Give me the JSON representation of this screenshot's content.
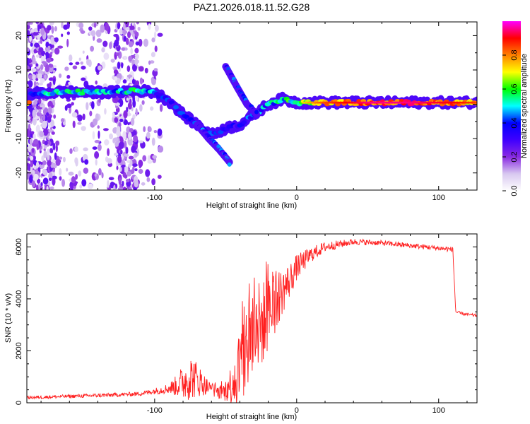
{
  "title": "PAZ1.2026.018.11.52.G28",
  "chart_data": [
    {
      "type": "heatmap",
      "xlabel": "Height of straight line (km)",
      "ylabel": "Frequency (Hz)",
      "xlim": [
        -190,
        127
      ],
      "ylim": [
        -25,
        24
      ],
      "xticks": [
        -100,
        0,
        100
      ],
      "yticks": [
        -20,
        -10,
        0,
        10,
        20
      ],
      "colorbar": {
        "label": "Normalized spectral amplitude",
        "ticks": [
          0.0,
          0.2,
          0.4,
          0.6,
          0.8
        ],
        "range": [
          0,
          1
        ],
        "stops": [
          "#ffffff",
          "#d8c8f0",
          "#8a2be2",
          "#3f00ff",
          "#0000ff",
          "#00ffff",
          "#00ff00",
          "#ffff00",
          "#ff8000",
          "#ff0000",
          "#ff00ff"
        ]
      },
      "ridge": [
        {
          "x": -188,
          "y": 3,
          "v": 0.45
        },
        {
          "x": -170,
          "y": 3.5,
          "v": 0.5
        },
        {
          "x": -150,
          "y": 3.5,
          "v": 0.5
        },
        {
          "x": -130,
          "y": 3.5,
          "v": 0.45
        },
        {
          "x": -112,
          "y": 4,
          "v": 0.55
        },
        {
          "x": -100,
          "y": 3.5,
          "v": 0.4
        },
        {
          "x": -90,
          "y": 1,
          "v": 0.35
        },
        {
          "x": -80,
          "y": -3,
          "v": 0.35
        },
        {
          "x": -70,
          "y": -6,
          "v": 0.35
        },
        {
          "x": -60,
          "y": -9,
          "v": 0.35
        },
        {
          "x": -50,
          "y": -7,
          "v": 0.35
        },
        {
          "x": -40,
          "y": -6,
          "v": 0.35
        },
        {
          "x": -30,
          "y": -3,
          "v": 0.4
        },
        {
          "x": -20,
          "y": 0,
          "v": 0.45
        },
        {
          "x": -10,
          "y": 1.5,
          "v": 0.5
        },
        {
          "x": 0,
          "y": 0.5,
          "v": 0.6
        },
        {
          "x": 20,
          "y": 0.5,
          "v": 0.75
        },
        {
          "x": 50,
          "y": 0.5,
          "v": 0.85
        },
        {
          "x": 80,
          "y": 0.5,
          "v": 0.85
        },
        {
          "x": 110,
          "y": 0.5,
          "v": 0.8
        },
        {
          "x": 127,
          "y": 0.5,
          "v": 0.75
        }
      ],
      "branches": [
        {
          "name": "lower branch",
          "points": [
            {
              "x": -70,
              "y": -6
            },
            {
              "x": -62,
              "y": -10
            },
            {
              "x": -55,
              "y": -13
            },
            {
              "x": -47,
              "y": -17
            }
          ]
        },
        {
          "name": "upper branch",
          "points": [
            {
              "x": -50,
              "y": 11
            },
            {
              "x": -42,
              "y": 5
            },
            {
              "x": -35,
              "y": 0
            },
            {
              "x": -28,
              "y": -3
            }
          ]
        }
      ]
    },
    {
      "type": "line",
      "xlabel": "Height of straight line (km)",
      "ylabel": "SNR (10 * v/v)",
      "xlim": [
        -190,
        127
      ],
      "ylim": [
        0,
        6500
      ],
      "xticks": [
        -100,
        0,
        100
      ],
      "yticks": [
        0,
        2000,
        4000,
        6000
      ],
      "series": [
        {
          "name": "SNR",
          "color": "#ff2020",
          "x": [
            -190,
            -160,
            -130,
            -110,
            -100,
            -90,
            -85,
            -80,
            -75,
            -70,
            -65,
            -60,
            -55,
            -50,
            -45,
            -40,
            -35,
            -30,
            -25,
            -20,
            -15,
            -10,
            -5,
            0,
            10,
            20,
            30,
            40,
            60,
            80,
            100,
            110,
            112,
            115,
            120,
            127
          ],
          "y": [
            200,
            250,
            300,
            350,
            450,
            550,
            650,
            800,
            1000,
            900,
            700,
            500,
            400,
            450,
            800,
            1400,
            2200,
            2800,
            3000,
            3400,
            3900,
            4300,
            4700,
            5200,
            5700,
            6000,
            6100,
            6200,
            6150,
            6050,
            5950,
            5900,
            3500,
            3450,
            3400,
            3350
          ],
          "noise": [
            60,
            70,
            80,
            80,
            120,
            200,
            400,
            700,
            900,
            700,
            400,
            250,
            250,
            400,
            900,
            1600,
            2000,
            2000,
            1700,
            1400,
            1200,
            900,
            700,
            500,
            300,
            200,
            150,
            120,
            100,
            100,
            100,
            100,
            60,
            60,
            60,
            60
          ]
        }
      ]
    }
  ]
}
